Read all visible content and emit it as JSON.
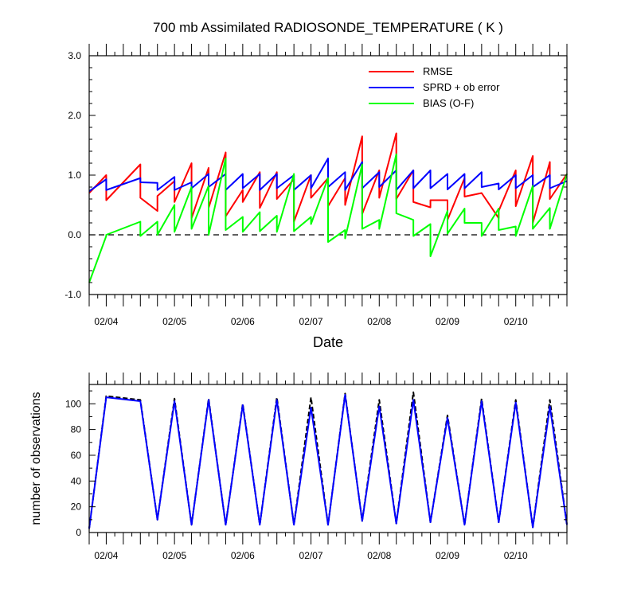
{
  "chart_data": [
    {
      "type": "line",
      "title": "700 mb Assimilated RADIOSONDE_TEMPERATURE ( K )",
      "xlabel": "Date",
      "ylabel": "",
      "ylim": [
        -1.0,
        3.0
      ],
      "yticks": [
        "-1.0",
        "0.0",
        "1.0",
        "2.0",
        "3.0"
      ],
      "xlim": [
        0,
        14
      ],
      "xticks": [
        {
          "x": 0.5,
          "label": "02/04"
        },
        {
          "x": 2.5,
          "label": "02/05"
        },
        {
          "x": 4.5,
          "label": "02/06"
        },
        {
          "x": 6.5,
          "label": "02/07"
        },
        {
          "x": 8.5,
          "label": "02/08"
        },
        {
          "x": 10.5,
          "label": "02/09"
        },
        {
          "x": 12.5,
          "label": "02/10"
        }
      ],
      "zero_line": 0.0,
      "legend_position": "top-right",
      "series": [
        {
          "name": "RMSE",
          "color": "#ff0000",
          "points": [
            [
              0,
              0.7
            ],
            [
              0.5,
              1.0
            ],
            [
              0.5,
              0.58
            ],
            [
              1.5,
              1.18
            ],
            [
              1.5,
              0.62
            ],
            [
              2,
              0.4
            ],
            [
              2,
              0.65
            ],
            [
              2.5,
              0.9
            ],
            [
              2.5,
              0.55
            ],
            [
              3,
              1.2
            ],
            [
              3,
              0.28
            ],
            [
              3.5,
              1.12
            ],
            [
              3.5,
              0.45
            ],
            [
              4,
              1.38
            ],
            [
              4,
              0.31
            ],
            [
              4.5,
              0.75
            ],
            [
              4.5,
              0.55
            ],
            [
              5,
              1.05
            ],
            [
              5,
              0.45
            ],
            [
              5.5,
              1.05
            ],
            [
              5.5,
              0.6
            ],
            [
              6,
              0.93
            ],
            [
              6,
              0.22
            ],
            [
              6.5,
              1.0
            ],
            [
              6.5,
              0.62
            ],
            [
              7,
              0.95
            ],
            [
              7,
              0.48
            ],
            [
              7.5,
              0.95
            ],
            [
              7.5,
              0.5
            ],
            [
              8,
              1.65
            ],
            [
              8,
              0.35
            ],
            [
              8.5,
              1.08
            ],
            [
              8.5,
              0.62
            ],
            [
              9,
              1.7
            ],
            [
              9,
              0.6
            ],
            [
              9.5,
              1.08
            ],
            [
              9.5,
              0.55
            ],
            [
              10,
              0.46
            ],
            [
              10,
              0.58
            ],
            [
              10.5,
              0.58
            ],
            [
              10.5,
              0.25
            ],
            [
              11,
              0.95
            ],
            [
              11,
              0.64
            ],
            [
              11.5,
              0.7
            ],
            [
              12,
              0.28
            ],
            [
              12,
              0.4
            ],
            [
              12.5,
              1.08
            ],
            [
              12.5,
              0.48
            ],
            [
              13,
              1.32
            ],
            [
              13,
              0.2
            ],
            [
              13.5,
              1.22
            ],
            [
              13.5,
              0.6
            ],
            [
              14,
              1.02
            ]
          ]
        },
        {
          "name": "SPRD + ob error",
          "color": "#0000ff",
          "points": [
            [
              0,
              0.73
            ],
            [
              0.5,
              0.93
            ],
            [
              0.5,
              0.75
            ],
            [
              1.5,
              0.95
            ],
            [
              1.5,
              0.88
            ],
            [
              2,
              0.87
            ],
            [
              2,
              0.75
            ],
            [
              2.5,
              0.97
            ],
            [
              2.5,
              0.75
            ],
            [
              3,
              0.88
            ],
            [
              3,
              0.78
            ],
            [
              3.5,
              1.02
            ],
            [
              3.5,
              0.8
            ],
            [
              4,
              1.02
            ],
            [
              4,
              0.75
            ],
            [
              4.5,
              1.02
            ],
            [
              4.5,
              0.78
            ],
            [
              5,
              1.02
            ],
            [
              5,
              0.75
            ],
            [
              5.5,
              1.02
            ],
            [
              5.5,
              0.78
            ],
            [
              6,
              1.0
            ],
            [
              6,
              0.75
            ],
            [
              6.5,
              1.0
            ],
            [
              6.5,
              0.78
            ],
            [
              7,
              1.28
            ],
            [
              7,
              0.8
            ],
            [
              7.5,
              1.05
            ],
            [
              7.5,
              0.75
            ],
            [
              8,
              1.22
            ],
            [
              8,
              0.78
            ],
            [
              8.5,
              1.05
            ],
            [
              8.5,
              0.8
            ],
            [
              9,
              1.08
            ],
            [
              9,
              0.75
            ],
            [
              9.5,
              1.08
            ],
            [
              9.5,
              0.78
            ],
            [
              10,
              1.08
            ],
            [
              10,
              0.78
            ],
            [
              10.5,
              1.02
            ],
            [
              10.5,
              0.76
            ],
            [
              11,
              1.02
            ],
            [
              11,
              0.78
            ],
            [
              11.5,
              1.05
            ],
            [
              11.5,
              0.8
            ],
            [
              12,
              0.86
            ],
            [
              12,
              0.76
            ],
            [
              12.5,
              1.0
            ],
            [
              12.5,
              0.78
            ],
            [
              13,
              1.0
            ],
            [
              13,
              0.8
            ],
            [
              13.5,
              1.0
            ],
            [
              13.5,
              0.78
            ],
            [
              14,
              0.9
            ]
          ]
        },
        {
          "name": "BIAS (O-F)",
          "color": "#00ff00",
          "points": [
            [
              0,
              -0.8
            ],
            [
              0.5,
              -0.02
            ],
            [
              0.5,
              0.0
            ],
            [
              1.5,
              0.22
            ],
            [
              1.5,
              -0.02
            ],
            [
              2,
              0.22
            ],
            [
              2,
              0.0
            ],
            [
              2.5,
              0.5
            ],
            [
              2.5,
              0.05
            ],
            [
              3,
              0.8
            ],
            [
              3,
              0.1
            ],
            [
              3.5,
              0.82
            ],
            [
              3.5,
              0.0
            ],
            [
              4,
              1.28
            ],
            [
              4,
              0.08
            ],
            [
              4.5,
              0.3
            ],
            [
              4.5,
              0.05
            ],
            [
              5,
              0.38
            ],
            [
              5,
              0.06
            ],
            [
              5.5,
              0.32
            ],
            [
              5.5,
              0.05
            ],
            [
              6,
              1.02
            ],
            [
              6,
              0.06
            ],
            [
              6.5,
              0.3
            ],
            [
              6.5,
              0.18
            ],
            [
              7,
              0.95
            ],
            [
              7,
              -0.12
            ],
            [
              7.5,
              0.08
            ],
            [
              7.5,
              -0.06
            ],
            [
              8,
              1.18
            ],
            [
              8,
              0.1
            ],
            [
              8.5,
              0.25
            ],
            [
              8.5,
              0.1
            ],
            [
              9,
              1.35
            ],
            [
              9,
              0.36
            ],
            [
              9.5,
              0.25
            ],
            [
              9.5,
              -0.02
            ],
            [
              10,
              0.18
            ],
            [
              10,
              -0.36
            ],
            [
              10.5,
              0.4
            ],
            [
              10.5,
              0.02
            ],
            [
              11,
              0.44
            ],
            [
              11,
              0.2
            ],
            [
              11.5,
              0.2
            ],
            [
              11.5,
              -0.02
            ],
            [
              12,
              0.44
            ],
            [
              12,
              0.08
            ],
            [
              12.5,
              0.14
            ],
            [
              12.5,
              -0.02
            ],
            [
              13,
              0.82
            ],
            [
              13,
              0.1
            ],
            [
              13.5,
              0.45
            ],
            [
              13.5,
              0.1
            ],
            [
              14,
              1.02
            ]
          ]
        }
      ]
    },
    {
      "type": "line",
      "title": "",
      "xlabel": "",
      "ylabel": "number of observations",
      "ylim": [
        0,
        115
      ],
      "yticks": [
        "0",
        "20",
        "40",
        "60",
        "80",
        "100"
      ],
      "xlim": [
        0,
        14
      ],
      "xticks": [
        {
          "x": 0.5,
          "label": "02/04"
        },
        {
          "x": 2.5,
          "label": "02/05"
        },
        {
          "x": 4.5,
          "label": "02/06"
        },
        {
          "x": 6.5,
          "label": "02/07"
        },
        {
          "x": 8.5,
          "label": "02/08"
        },
        {
          "x": 10.5,
          "label": "02/09"
        },
        {
          "x": 12.5,
          "label": "02/10"
        }
      ],
      "series": [
        {
          "color": "#000000",
          "dashed": true,
          "points": [
            [
              0,
              3
            ],
            [
              0.5,
              106
            ],
            [
              1.5,
              103
            ],
            [
              2,
              10
            ],
            [
              2.5,
              104
            ],
            [
              3,
              6
            ],
            [
              3.5,
              104
            ],
            [
              4,
              6
            ],
            [
              4.5,
              100
            ],
            [
              5,
              6
            ],
            [
              5.5,
              105
            ],
            [
              6,
              6
            ],
            [
              6.5,
              105
            ],
            [
              7,
              6
            ],
            [
              7.5,
              108
            ],
            [
              8,
              9
            ],
            [
              8.5,
              103
            ],
            [
              9,
              7
            ],
            [
              9.5,
              109
            ],
            [
              10,
              8
            ],
            [
              10.5,
              91
            ],
            [
              11,
              6
            ],
            [
              11.5,
              104
            ],
            [
              12,
              8
            ],
            [
              12.5,
              103
            ],
            [
              13,
              4
            ],
            [
              13.5,
              103
            ],
            [
              14,
              6
            ]
          ]
        },
        {
          "color": "#0000ff",
          "dashed": false,
          "points": [
            [
              0,
              3
            ],
            [
              0.5,
              105
            ],
            [
              1.5,
              102
            ],
            [
              2,
              10
            ],
            [
              2.5,
              102
            ],
            [
              3,
              6
            ],
            [
              3.5,
              103
            ],
            [
              4,
              6
            ],
            [
              4.5,
              99
            ],
            [
              5,
              6
            ],
            [
              5.5,
              103
            ],
            [
              6,
              6
            ],
            [
              6.5,
              97
            ],
            [
              7,
              6
            ],
            [
              7.5,
              107
            ],
            [
              8,
              9
            ],
            [
              8.5,
              98
            ],
            [
              9,
              7
            ],
            [
              9.5,
              103
            ],
            [
              10,
              8
            ],
            [
              10.5,
              89
            ],
            [
              11,
              6
            ],
            [
              11.5,
              102
            ],
            [
              12,
              8
            ],
            [
              12.5,
              101
            ],
            [
              13,
              4
            ],
            [
              13.5,
              98
            ],
            [
              14,
              6
            ]
          ]
        }
      ]
    }
  ]
}
